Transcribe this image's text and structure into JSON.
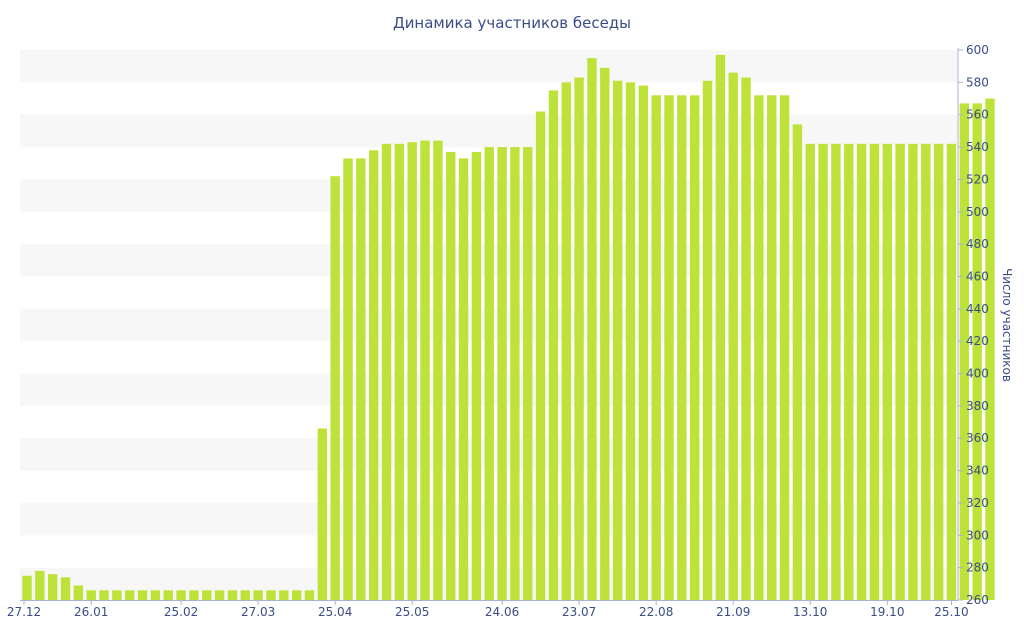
{
  "chart_data": {
    "type": "bar",
    "title": "Динамика участников беседы",
    "xlabel": "",
    "ylabel": "Число участников",
    "ylim": [
      260,
      600
    ],
    "ytick_step": 20,
    "grid": "alternating horizontal bands",
    "bar_color": "#bde33a",
    "band_color": "#f7f7f7",
    "text_color": "#3a4d86",
    "x_tick_labels": [
      "27.12",
      "26.01",
      "25.02",
      "27.03",
      "25.04",
      "25.05",
      "24.06",
      "23.07",
      "22.08",
      "21.09",
      "13.10",
      "19.10",
      "25.10"
    ],
    "x_tick_bar_index": [
      0,
      5,
      12,
      18,
      24,
      30,
      37,
      43,
      49,
      55,
      61,
      67,
      72
    ],
    "series": [
      {
        "values": [
          275,
          278,
          276,
          274,
          269,
          266,
          266,
          266,
          266,
          266,
          266,
          266,
          266,
          266,
          266,
          266,
          266,
          266,
          266,
          266,
          266,
          266,
          266,
          366,
          522,
          533,
          533,
          538,
          542,
          542,
          543,
          544,
          544,
          537,
          533,
          537,
          540,
          540,
          540,
          540,
          562,
          575,
          580,
          583,
          595,
          589,
          581,
          580,
          578,
          572,
          572,
          572,
          572,
          581,
          597,
          586,
          583,
          572,
          572,
          572,
          554,
          542,
          542,
          542,
          542,
          542,
          542,
          542,
          542,
          542,
          542,
          542,
          542,
          567,
          567,
          570
        ]
      }
    ]
  }
}
